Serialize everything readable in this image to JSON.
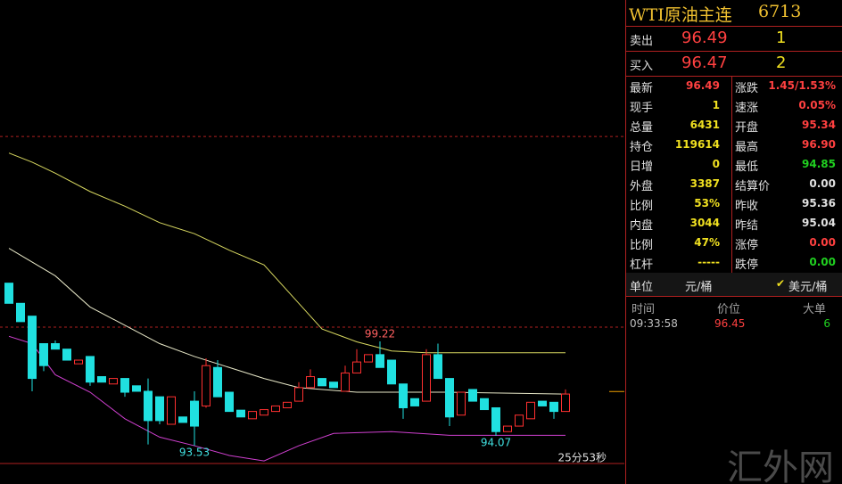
{
  "chart_data": {
    "type": "candlestick",
    "ylim": [
      92.56,
      117.85
    ],
    "candles": [
      {
        "o": 102.4,
        "h": 102.4,
        "l": 101.3,
        "c": 101.3
      },
      {
        "o": 101.3,
        "h": 101.3,
        "l": 100.3,
        "c": 100.3
      },
      {
        "o": 100.6,
        "h": 100.6,
        "l": 96.5,
        "c": 97.2
      },
      {
        "o": 99.1,
        "h": 99.1,
        "l": 97.6,
        "c": 97.9
      },
      {
        "o": 99.1,
        "h": 99.27,
        "l": 98.8,
        "c": 98.8
      },
      {
        "o": 98.8,
        "h": 98.8,
        "l": 98.2,
        "c": 98.2
      },
      {
        "o": 98.0,
        "h": 98.2,
        "l": 98.0,
        "c": 98.2
      },
      {
        "o": 98.4,
        "h": 98.4,
        "l": 96.8,
        "c": 97.0
      },
      {
        "o": 97.3,
        "h": 97.3,
        "l": 97.0,
        "c": 97.0
      },
      {
        "o": 96.9,
        "h": 97.2,
        "l": 96.9,
        "c": 97.2
      },
      {
        "o": 97.2,
        "h": 97.2,
        "l": 96.2,
        "c": 96.45
      },
      {
        "o": 96.8,
        "h": 96.8,
        "l": 96.5,
        "c": 96.5
      },
      {
        "o": 96.5,
        "h": 97.2,
        "l": 93.6,
        "c": 94.9
      },
      {
        "o": 96.2,
        "h": 96.2,
        "l": 94.7,
        "c": 94.9
      },
      {
        "o": 94.7,
        "h": 96.2,
        "l": 94.7,
        "c": 96.2
      },
      {
        "o": 95.1,
        "h": 95.1,
        "l": 94.8,
        "c": 94.8
      },
      {
        "o": 95.96,
        "h": 96.5,
        "l": 93.53,
        "c": 94.6
      },
      {
        "o": 95.7,
        "h": 98.3,
        "l": 95.6,
        "c": 97.9
      },
      {
        "o": 97.8,
        "h": 98.2,
        "l": 96.2,
        "c": 96.2
      },
      {
        "o": 96.45,
        "h": 96.45,
        "l": 95.4,
        "c": 95.4
      },
      {
        "o": 95.47,
        "h": 95.47,
        "l": 95.1,
        "c": 95.1
      },
      {
        "o": 95.0,
        "h": 95.4,
        "l": 95.0,
        "c": 95.4
      },
      {
        "o": 95.2,
        "h": 95.5,
        "l": 95.2,
        "c": 95.5
      },
      {
        "o": 95.4,
        "h": 95.7,
        "l": 95.4,
        "c": 95.7
      },
      {
        "o": 95.6,
        "h": 95.9,
        "l": 95.6,
        "c": 95.9
      },
      {
        "o": 95.96,
        "h": 97.0,
        "l": 95.96,
        "c": 96.7
      },
      {
        "o": 96.7,
        "h": 97.7,
        "l": 96.7,
        "c": 97.3
      },
      {
        "o": 97.2,
        "h": 97.2,
        "l": 96.8,
        "c": 96.8
      },
      {
        "o": 97.0,
        "h": 97.0,
        "l": 96.7,
        "c": 96.7
      },
      {
        "o": 96.5,
        "h": 97.9,
        "l": 96.5,
        "c": 97.5
      },
      {
        "o": 97.5,
        "h": 98.8,
        "l": 97.5,
        "c": 98.1
      },
      {
        "o": 98.1,
        "h": 98.5,
        "l": 98.1,
        "c": 98.5
      },
      {
        "o": 98.5,
        "h": 99.22,
        "l": 97.8,
        "c": 97.8
      },
      {
        "o": 98.2,
        "h": 98.2,
        "l": 96.9,
        "c": 96.9
      },
      {
        "o": 96.9,
        "h": 96.9,
        "l": 95.0,
        "c": 95.6
      },
      {
        "o": 96.1,
        "h": 96.1,
        "l": 95.7,
        "c": 95.7
      },
      {
        "o": 95.96,
        "h": 98.8,
        "l": 95.96,
        "c": 98.5
      },
      {
        "o": 98.5,
        "h": 99.1,
        "l": 97.2,
        "c": 97.2
      },
      {
        "o": 97.2,
        "h": 97.2,
        "l": 94.6,
        "c": 95.1
      },
      {
        "o": 95.2,
        "h": 96.45,
        "l": 95.2,
        "c": 96.45
      },
      {
        "o": 96.6,
        "h": 96.6,
        "l": 95.96,
        "c": 95.96
      },
      {
        "o": 96.1,
        "h": 96.1,
        "l": 95.5,
        "c": 95.5
      },
      {
        "o": 95.6,
        "h": 95.6,
        "l": 94.07,
        "c": 94.3
      },
      {
        "o": 94.3,
        "h": 94.6,
        "l": 94.3,
        "c": 94.6
      },
      {
        "o": 94.6,
        "h": 95.2,
        "l": 94.6,
        "c": 95.2
      },
      {
        "o": 95.0,
        "h": 95.9,
        "l": 95.0,
        "c": 95.9
      },
      {
        "o": 95.96,
        "h": 95.96,
        "l": 95.7,
        "c": 95.7
      },
      {
        "o": 95.9,
        "h": 95.9,
        "l": 95.0,
        "c": 95.4
      },
      {
        "o": 95.4,
        "h": 96.6,
        "l": 95.4,
        "c": 96.35
      }
    ],
    "up_color": "#ff3030",
    "down_color": "#20e0e0",
    "series": [
      {
        "color": "#d8d860",
        "x": [
          0,
          2,
          4,
          7,
          10,
          13,
          16,
          19,
          22,
          25,
          27,
          30,
          33,
          36,
          39,
          48
        ],
        "values": [
          109.5,
          109.0,
          108.4,
          107.4,
          106.6,
          105.7,
          105.1,
          104.2,
          103.4,
          101.3,
          99.9,
          99.2,
          98.7,
          98.6,
          98.6,
          98.6
        ]
      },
      {
        "color": "#e8e8c8",
        "x": [
          0,
          4,
          7,
          10,
          13,
          16,
          19,
          22,
          25,
          30,
          38,
          48
        ],
        "values": [
          104.3,
          102.8,
          101.1,
          100.1,
          99.1,
          98.4,
          97.8,
          97.2,
          96.7,
          96.45,
          96.45,
          96.35
        ]
      },
      {
        "color": "#d040d0",
        "x": [
          0,
          2,
          4,
          7,
          10,
          13,
          16,
          19,
          22,
          25,
          28,
          33,
          38,
          48
        ],
        "values": [
          99.5,
          99.1,
          97.4,
          96.45,
          95.0,
          94.0,
          93.53,
          93.0,
          92.7,
          93.53,
          94.2,
          94.3,
          94.1,
          94.1
        ]
      }
    ],
    "limit_lines": [
      110.4,
      100.0
    ],
    "annotations": [
      99.22,
      93.53,
      94.07
    ],
    "countdown": "25分53秒"
  },
  "panel": {
    "title": "WTI原油主连",
    "code": "6713",
    "sell": {
      "label": "卖出",
      "price": 96.49,
      "qty": 1
    },
    "buy": {
      "label": "买入",
      "price": 96.47,
      "qty": 2
    },
    "stats_left": [
      {
        "label": "最新",
        "value": "96.49",
        "color": "#ff4040"
      },
      {
        "label": "现手",
        "value": "1",
        "color": "#f0e020"
      },
      {
        "label": "总量",
        "value": "6431",
        "color": "#f0e020"
      },
      {
        "label": "持仓",
        "value": "119614",
        "color": "#f0e020"
      },
      {
        "label": "日增",
        "value": "0",
        "color": "#f0e020"
      },
      {
        "label": "外盘",
        "value": "3387",
        "color": "#f0e020"
      },
      {
        "label": "比例",
        "value": "53%",
        "color": "#f0e020"
      },
      {
        "label": "内盘",
        "value": "3044",
        "color": "#f0e020"
      },
      {
        "label": "比例",
        "value": "47%",
        "color": "#f0e020"
      },
      {
        "label": "杠杆",
        "value": "-----",
        "color": "#f0e020"
      }
    ],
    "stats_right": [
      {
        "label": "涨跌",
        "value": "1.45/1.53%",
        "color": "#ff4040"
      },
      {
        "label": "速涨",
        "value": "0.05%",
        "color": "#ff4040"
      },
      {
        "label": "开盘",
        "value": "95.34",
        "color": "#ff4040"
      },
      {
        "label": "最高",
        "value": "96.90",
        "color": "#ff4040"
      },
      {
        "label": "最低",
        "value": "94.85",
        "color": "#20d020"
      },
      {
        "label": "结算价",
        "value": "0.00",
        "color": "#e0e0e0"
      },
      {
        "label": "昨收",
        "value": "95.36",
        "color": "#e0e0e0"
      },
      {
        "label": "昨结",
        "value": "95.04",
        "color": "#e0e0e0"
      },
      {
        "label": "涨停",
        "value": "0.00",
        "color": "#ff4040"
      },
      {
        "label": "跌停",
        "value": "0.00",
        "color": "#20d020"
      }
    ],
    "unit": {
      "label": "单位",
      "option1": "元/桶",
      "option2": "美元/桶"
    },
    "ticks_header": [
      "时间",
      "价位",
      "大单"
    ],
    "ticks": [
      {
        "time": "09:33:58",
        "price": 96.45,
        "size": 6
      }
    ]
  },
  "watermark": "汇外网"
}
